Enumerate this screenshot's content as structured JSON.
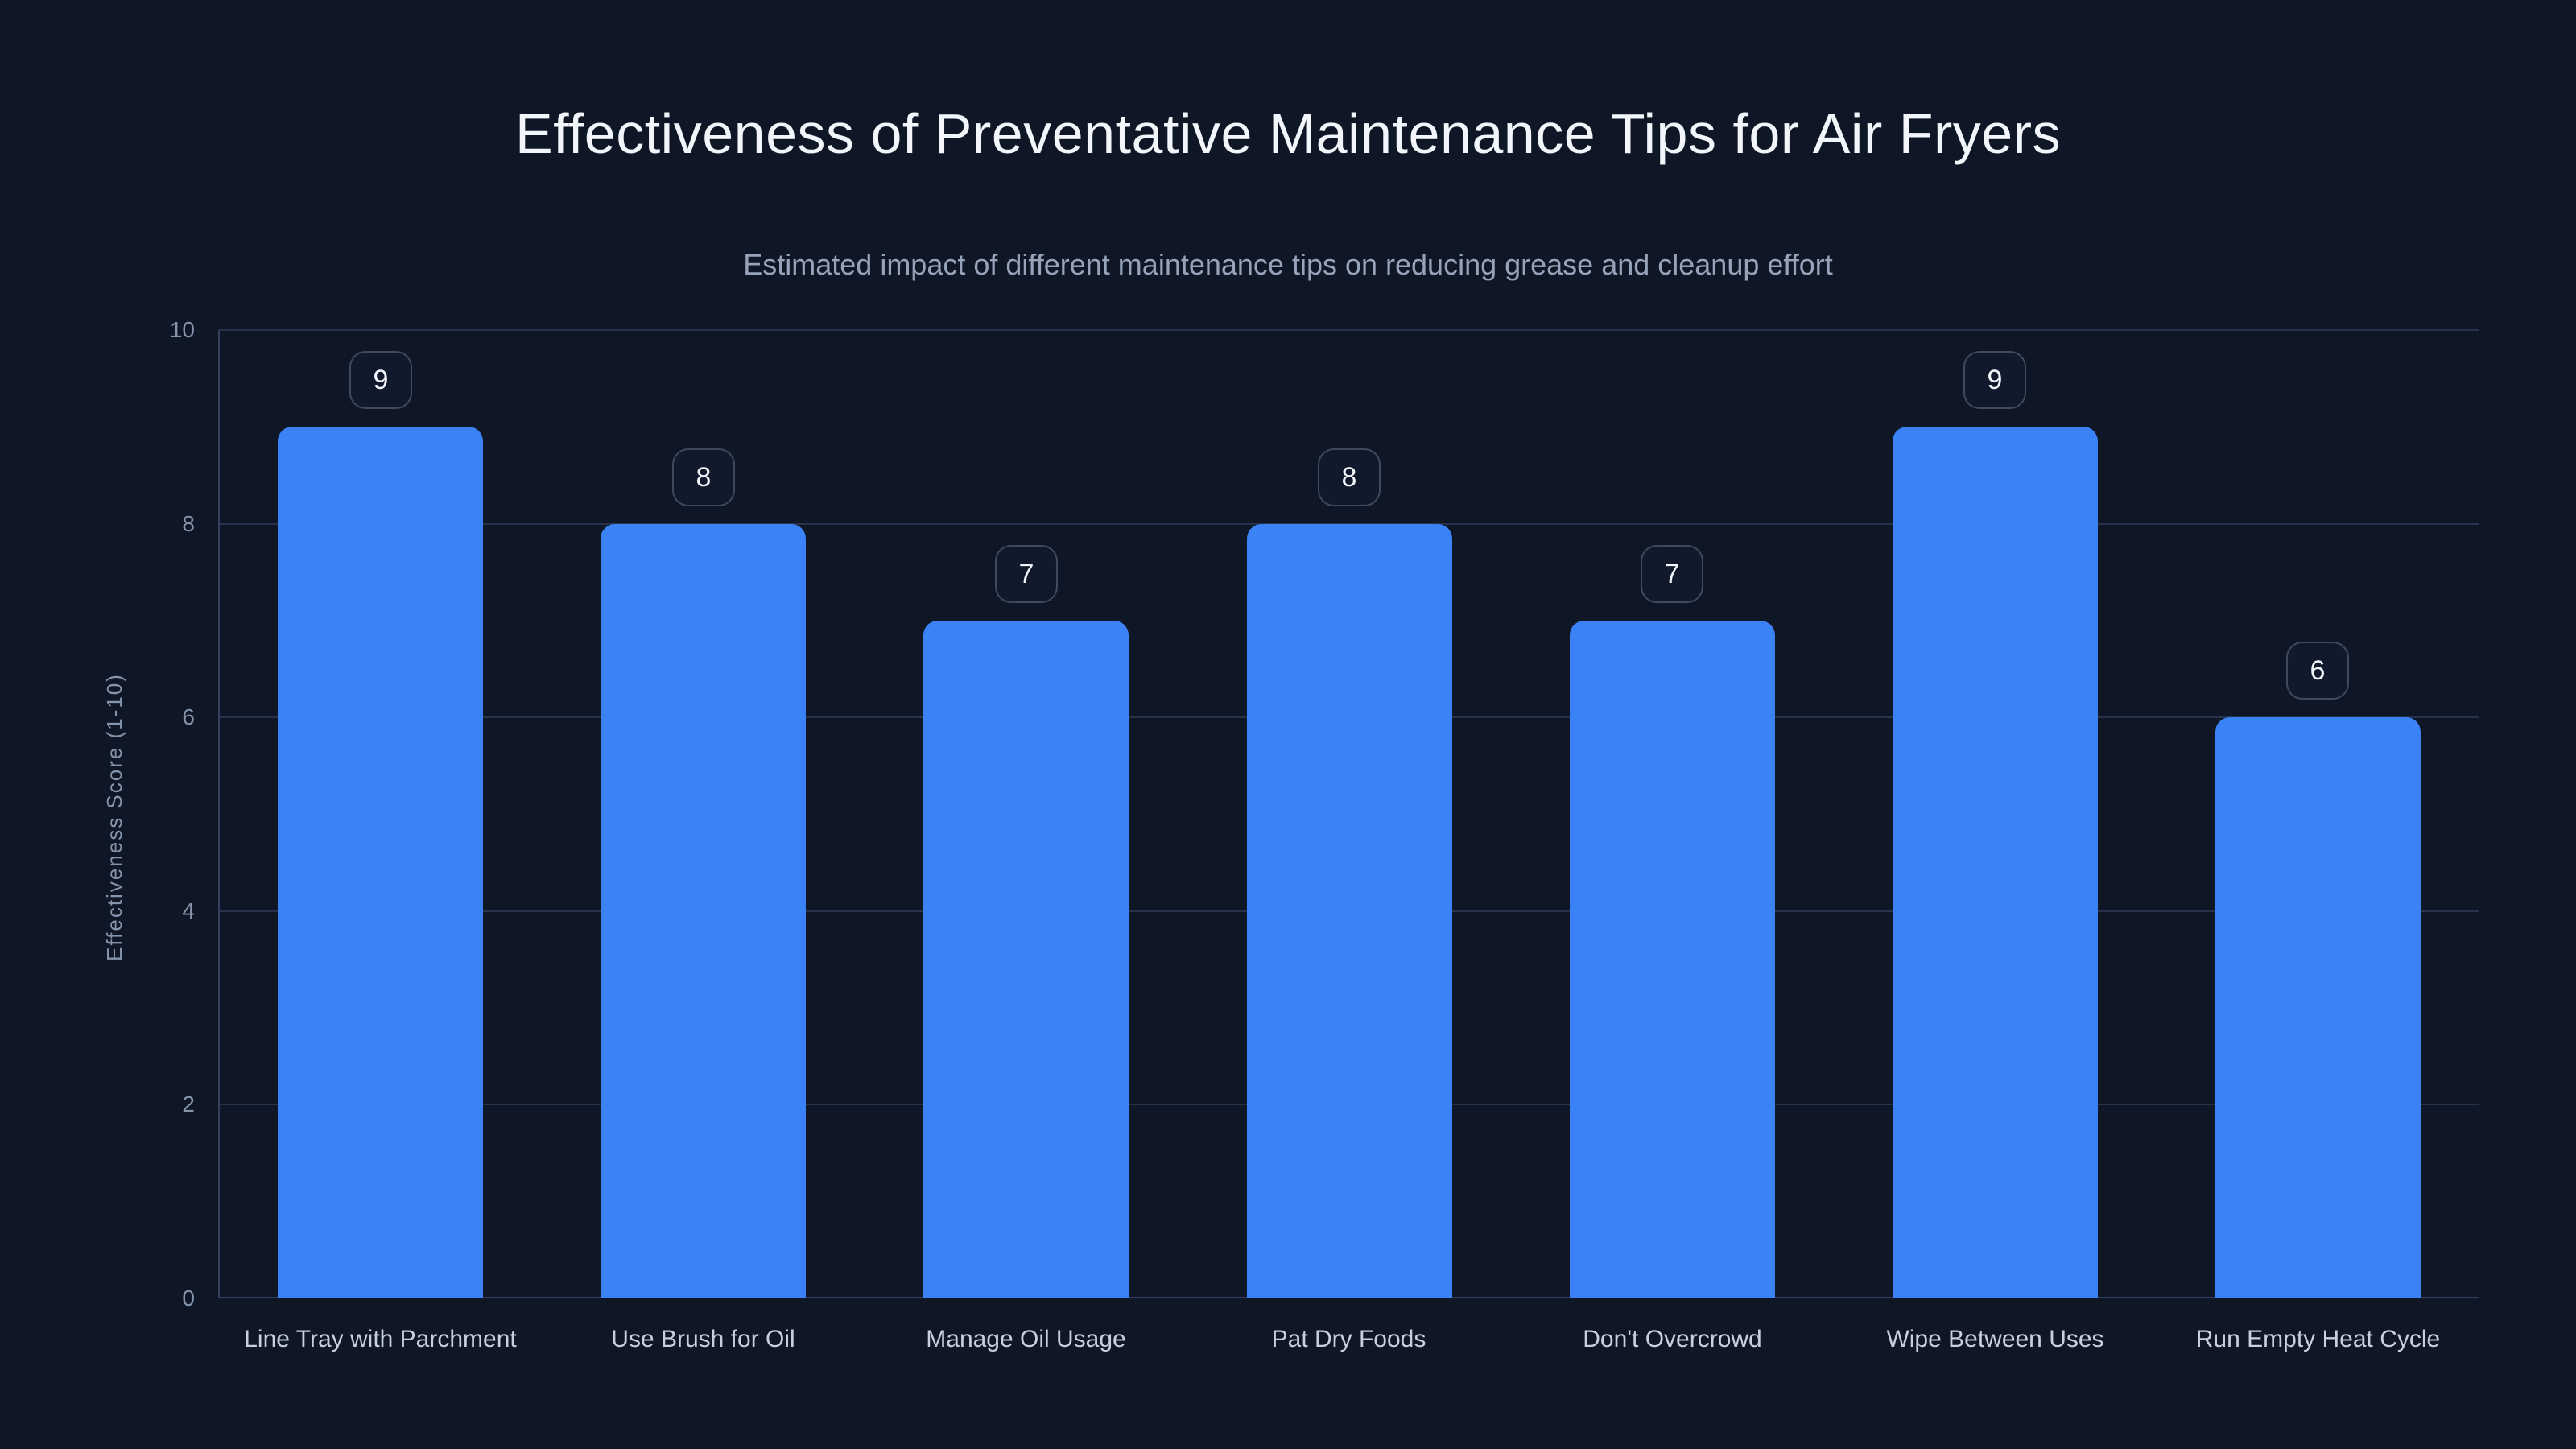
{
  "chart_data": {
    "type": "bar",
    "title": "Effectiveness of Preventative Maintenance Tips for Air Fryers",
    "subtitle": "Estimated impact of different maintenance tips on reducing grease and cleanup effort",
    "categories": [
      "Line Tray with Parchment",
      "Use Brush for Oil",
      "Manage Oil Usage",
      "Pat Dry Foods",
      "Don't Overcrowd",
      "Wipe Between Uses",
      "Run Empty Heat Cycle"
    ],
    "values": [
      9,
      8,
      7,
      8,
      7,
      9,
      6
    ],
    "value_badges": [
      "9",
      "8",
      "7",
      "8",
      "7",
      "9",
      "6"
    ],
    "xlabel": "",
    "ylabel": "Effectiveness Score (1-10)",
    "ylim": [
      0,
      10
    ],
    "yticks": [
      0,
      2,
      4,
      6,
      8,
      10
    ],
    "grid": "horizontal",
    "legend": "none"
  },
  "colors": {
    "background": "#0f1726",
    "bar": "#3b82f6",
    "grid": "#27334c",
    "axis": "#33415f",
    "title": "#f2f6fa",
    "subtitle": "#96a3b8",
    "tick": "#8494ab",
    "axis_label": "#8494ab",
    "x_label": "#c7d0dc",
    "badge_border": "#3f4a5f",
    "badge_bg": "#101a2c",
    "badge_text": "#f2f6fa"
  }
}
